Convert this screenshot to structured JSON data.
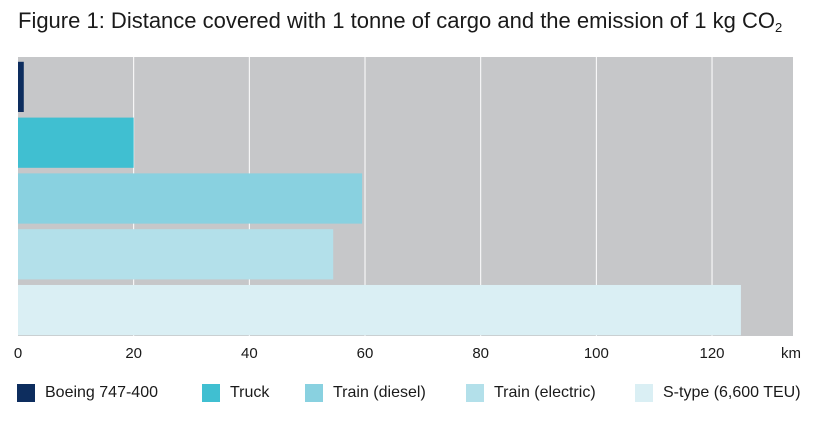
{
  "title_main": "Figure 1: Distance covered with 1 tonne of cargo and the emission of 1 kg CO",
  "title_sub": "2",
  "chart_data": {
    "type": "bar",
    "orientation": "horizontal",
    "title": "Figure 1: Distance covered with 1 tonne of cargo and the emission of 1 kg CO2",
    "categories": [
      "Boeing 747-400",
      "Truck",
      "Train (diesel)",
      "Train (electric)",
      "S-type (6,600 TEU)"
    ],
    "values": [
      1,
      20,
      59.5,
      54.5,
      125
    ],
    "colors": [
      "#0d2d5e",
      "#40bfd1",
      "#89d1e0",
      "#b3e0ea",
      "#daeff4"
    ],
    "xlim": [
      0,
      134
    ],
    "xticks": [
      0,
      20,
      40,
      60,
      80,
      100,
      120
    ],
    "xticklabels": [
      "0",
      "20",
      "40",
      "60",
      "80",
      "100",
      "120"
    ],
    "xlabel": "km",
    "plot_background": "#c6c7c9",
    "grid": true,
    "legend_position": "bottom"
  },
  "legend": {
    "items": [
      {
        "label": "Boeing 747-400",
        "color": "#0d2d5e"
      },
      {
        "label": "Truck",
        "color": "#40bfd1"
      },
      {
        "label": "Train (diesel)",
        "color": "#89d1e0"
      },
      {
        "label": "Train (electric)",
        "color": "#b3e0ea"
      },
      {
        "label": "S-type (6,600 TEU)",
        "color": "#daeff4"
      }
    ]
  }
}
